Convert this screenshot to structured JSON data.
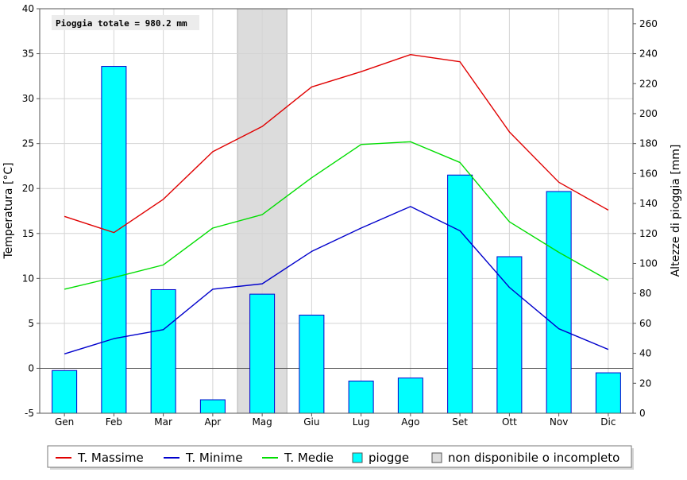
{
  "chart_data": {
    "type": "bar",
    "annotation": "Pioggia totale = 980.2 mm",
    "categories": [
      "Gen",
      "Feb",
      "Mar",
      "Apr",
      "Mag",
      "Giu",
      "Lug",
      "Ago",
      "Set",
      "Ott",
      "Nov",
      "Dic"
    ],
    "ylabel_left": "Temperatura [°C]",
    "ylabel_right": "Altezze di pioggia [mm]",
    "ylim_left": [
      -5,
      40
    ],
    "ylim_right": [
      0,
      270
    ],
    "yticks_left": [
      -5,
      0,
      5,
      10,
      15,
      20,
      25,
      30,
      35,
      40
    ],
    "yticks_right": [
      0,
      20,
      40,
      60,
      80,
      100,
      120,
      140,
      160,
      180,
      200,
      220,
      240,
      260
    ],
    "grid": true,
    "legend_position": "bottom",
    "unavailable_months": [
      "Mag"
    ],
    "bars": {
      "name": "piogge",
      "color": "#00ffff",
      "edge_color": "#0000cc",
      "axis": "right",
      "values": [
        28.5,
        231.5,
        82.5,
        9.0,
        79.5,
        65.5,
        21.5,
        23.5,
        159.0,
        104.5,
        148.0,
        27.0
      ]
    },
    "series": [
      {
        "name": "T. Massime",
        "color": "#e00000",
        "axis": "left",
        "values": [
          16.9,
          15.1,
          18.8,
          24.1,
          26.9,
          31.3,
          33.0,
          34.9,
          34.1,
          26.3,
          20.7,
          17.6
        ]
      },
      {
        "name": "T. Minime",
        "color": "#0000cc",
        "axis": "left",
        "values": [
          1.6,
          3.3,
          4.3,
          8.8,
          9.4,
          13.0,
          15.6,
          18.0,
          15.3,
          9.0,
          4.4,
          2.1
        ]
      },
      {
        "name": "T. Medie",
        "color": "#00dd00",
        "axis": "left",
        "values": [
          8.8,
          10.1,
          11.5,
          15.6,
          17.1,
          21.2,
          24.9,
          25.2,
          22.9,
          16.3,
          12.9,
          9.8
        ]
      }
    ],
    "legend": [
      {
        "label": "T. Massime",
        "kind": "line",
        "color": "#e00000"
      },
      {
        "label": "T. Minime",
        "kind": "line",
        "color": "#0000cc"
      },
      {
        "label": "T. Medie",
        "kind": "line",
        "color": "#00dd00"
      },
      {
        "label": "piogge",
        "kind": "box",
        "color": "#00ffff"
      },
      {
        "label": "non disponibile o incompleto",
        "kind": "box",
        "color": "#dcdcdc"
      }
    ]
  }
}
